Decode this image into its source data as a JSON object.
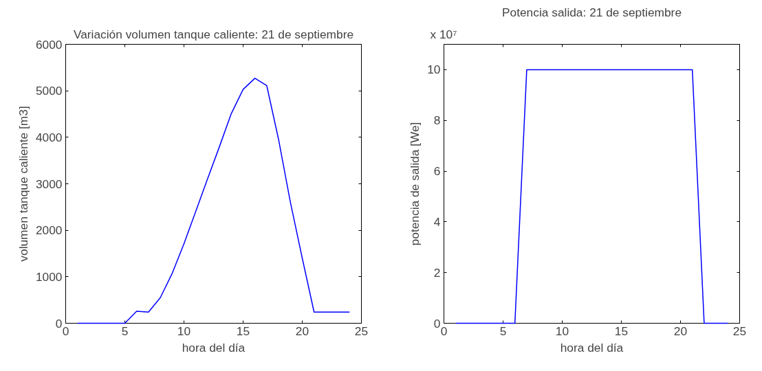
{
  "chart_data": [
    {
      "type": "line",
      "title": "Variación volumen tanque caliente: 21 de septiembre",
      "xlabel": "hora del día",
      "ylabel": "volumen tanque caliente [m3]",
      "x": [
        1,
        2,
        3,
        4,
        5,
        6,
        7,
        8,
        9,
        10,
        11,
        12,
        13,
        14,
        15,
        16,
        17,
        18,
        19,
        20,
        21,
        22,
        23,
        24
      ],
      "series": [
        {
          "color": "#0000ff",
          "values": [
            0,
            0,
            0,
            0,
            0,
            260,
            240,
            550,
            1070,
            1710,
            2410,
            3110,
            3800,
            4510,
            5030,
            5270,
            5110,
            3950,
            2600,
            1400,
            240,
            240,
            240,
            240
          ]
        }
      ],
      "xlim": [
        0,
        25
      ],
      "xticks": [
        0,
        5,
        10,
        15,
        20,
        25
      ],
      "ylim": [
        0,
        6000
      ],
      "yticks": [
        0,
        1000,
        2000,
        3000,
        4000,
        5000,
        6000
      ],
      "grid": false
    },
    {
      "type": "line",
      "title": "Potencia salida: 21 de septiembre",
      "xlabel": "hora del día",
      "ylabel": "potencia de salida [We]",
      "annotations": [
        "x 10⁷"
      ],
      "x": [
        1,
        2,
        3,
        4,
        5,
        6,
        7,
        8,
        9,
        10,
        11,
        12,
        13,
        14,
        15,
        16,
        17,
        18,
        19,
        20,
        21,
        22,
        23,
        24
      ],
      "series": [
        {
          "color": "#0000ff",
          "values": [
            0,
            0,
            0,
            0,
            0,
            0,
            10,
            10,
            10,
            10,
            10,
            10,
            10,
            10,
            10,
            10,
            10,
            10,
            10,
            10,
            10,
            0,
            0,
            0
          ]
        }
      ],
      "xlim": [
        0,
        25
      ],
      "xticks": [
        0,
        5,
        10,
        15,
        20,
        25
      ],
      "ylim": [
        0,
        11
      ],
      "yticks": [
        0,
        2,
        4,
        6,
        8,
        10
      ],
      "grid": false
    }
  ]
}
